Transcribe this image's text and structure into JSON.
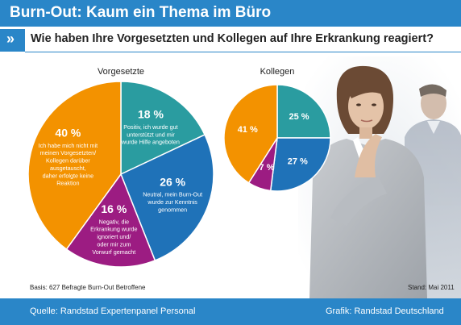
{
  "header": {
    "title": "Burn-Out: Kaum ein Thema im Büro",
    "icon": "double-chevron-right-icon"
  },
  "question": "Wie haben Ihre Vorgesetzten und Kollegen auf Ihre Erkrankung reagiert?",
  "colors": {
    "teal": "#2a9ca0",
    "blue": "#1f72b8",
    "purple": "#9c1c82",
    "orange": "#f39200",
    "brand": "#2a86c8"
  },
  "chart_data": [
    {
      "type": "pie",
      "title": "Vorgesetzte",
      "slices": [
        {
          "key": "positive",
          "value": 18,
          "label": "18 %",
          "text": [
            "Positiv, ich wurde gut",
            "unterstützt und mir",
            "wurde Hilfe angeboten"
          ]
        },
        {
          "key": "neutral",
          "value": 26,
          "label": "26 %",
          "text": [
            "Neutral, mein Burn-Out",
            "wurde zur Kenntnis",
            "genommen"
          ]
        },
        {
          "key": "negative",
          "value": 16,
          "label": "16 %",
          "text": [
            "Negativ, die",
            "Erkrankung wurde",
            "ignoriert und/",
            "oder mir zum",
            "Vorwurf gemacht"
          ]
        },
        {
          "key": "not-told",
          "value": 40,
          "label": "40 %",
          "text": [
            "Ich habe mich nicht mit",
            "meinen Vorgesetzten/",
            "Kollegen darüber",
            "ausgetauscht,",
            "daher erfolgte keine",
            "Reaktion"
          ]
        }
      ]
    },
    {
      "type": "pie",
      "title": "Kollegen",
      "slices": [
        {
          "key": "positive",
          "value": 25,
          "label": "25 %"
        },
        {
          "key": "neutral",
          "value": 27,
          "label": "27 %"
        },
        {
          "key": "negative",
          "value": 7,
          "label": "7 %"
        },
        {
          "key": "not-told",
          "value": 41,
          "label": "41 %"
        }
      ]
    }
  ],
  "notes": {
    "basis": "Basis: 627 Befragte Burn-Out Betroffene",
    "stand": "Stand: Mai 2011"
  },
  "footer": {
    "source": "Quelle: Randstad Expertenpanel Personal",
    "credit": "Grafik: Randstad Deutschland"
  }
}
